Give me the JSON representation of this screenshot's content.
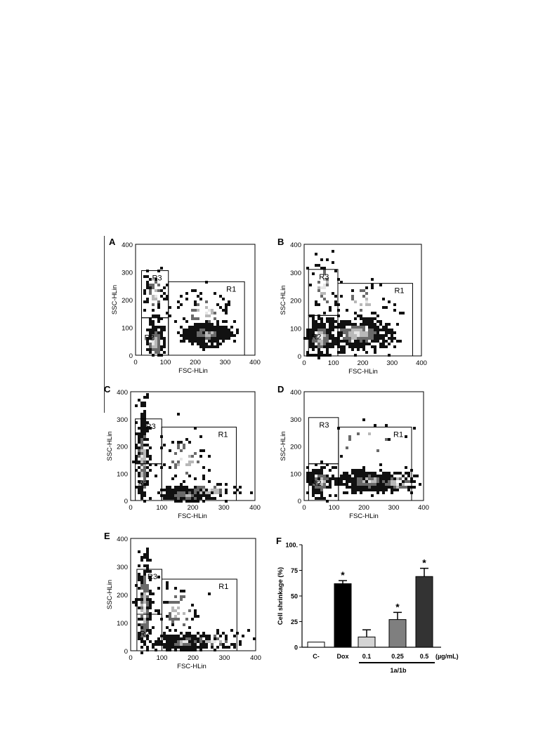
{
  "panels": [
    {
      "label": "A",
      "xlabel": "FSC-HLin",
      "ylabel": "SSC-HLin",
      "xticks": [
        "0",
        "100",
        "200",
        "300",
        "400"
      ],
      "yticks": [
        "0",
        "100",
        "200",
        "300",
        "400"
      ],
      "regions": [
        "R1",
        "R2",
        "R3"
      ]
    },
    {
      "label": "B",
      "xlabel": "FSC-HLin",
      "ylabel": "SSC-HLin",
      "xticks": [
        "0",
        "100",
        "200",
        "300",
        "400"
      ],
      "yticks": [
        "0",
        "100",
        "200",
        "300",
        "400"
      ],
      "regions": [
        "R1",
        "R2",
        "R3"
      ]
    },
    {
      "label": "C",
      "xlabel": "FSC-HLin",
      "ylabel": "SSC-HLin",
      "xticks": [
        "0",
        "100",
        "200",
        "300",
        "400"
      ],
      "yticks": [
        "0",
        "100",
        "200",
        "300",
        "400"
      ],
      "regions": [
        "R1",
        "R2",
        "R3"
      ]
    },
    {
      "label": "D",
      "xlabel": "FSC-HLin",
      "ylabel": "SSC-HLin",
      "xticks": [
        "0",
        "100",
        "200",
        "300",
        "400"
      ],
      "yticks": [
        "0",
        "100",
        "200",
        "300",
        "400"
      ],
      "regions": [
        "R1",
        "R2",
        "R3"
      ]
    },
    {
      "label": "E",
      "xlabel": "FSC-HLin",
      "ylabel": "SSC-HLin",
      "xticks": [
        "0",
        "100",
        "200",
        "300",
        "400"
      ],
      "yticks": [
        "0",
        "100",
        "200",
        "300",
        "400"
      ],
      "regions": [
        "R1",
        "R2",
        "R3"
      ]
    }
  ],
  "bar_panel": {
    "label": "F",
    "ylabel": "Cell shrinkage (%)",
    "yticks": [
      "0",
      "25",
      "50",
      "75",
      "100."
    ],
    "unit": "(µg/mL)",
    "group_label": "1a/1b"
  },
  "colors": {
    "axis": "#000000",
    "background": "#ffffff"
  },
  "chart_data": [
    {
      "type": "scatter",
      "panel": "A",
      "xlim": [
        0,
        400
      ],
      "ylim": [
        0,
        400
      ],
      "gates": [
        {
          "name": "R1",
          "x": [
            110,
            365
          ],
          "y": [
            0,
            265
          ]
        },
        {
          "name": "R2",
          "x": [
            20,
            110
          ],
          "y": [
            0,
            135
          ]
        },
        {
          "name": "R3",
          "x": [
            20,
            110
          ],
          "y": [
            135,
            305
          ]
        }
      ]
    },
    {
      "type": "scatter",
      "panel": "B",
      "xlim": [
        0,
        400
      ],
      "ylim": [
        0,
        400
      ],
      "gates": [
        {
          "name": "R1",
          "x": [
            115,
            370
          ],
          "y": [
            0,
            260
          ]
        },
        {
          "name": "R2",
          "x": [
            15,
            115
          ],
          "y": [
            0,
            145
          ]
        },
        {
          "name": "R3",
          "x": [
            15,
            115
          ],
          "y": [
            145,
            310
          ]
        }
      ]
    },
    {
      "type": "scatter",
      "panel": "C",
      "xlim": [
        0,
        400
      ],
      "ylim": [
        0,
        400
      ],
      "gates": [
        {
          "name": "R1",
          "x": [
            100,
            340
          ],
          "y": [
            0,
            270
          ]
        },
        {
          "name": "R2",
          "x": [
            15,
            100
          ],
          "y": [
            0,
            135
          ]
        },
        {
          "name": "R3",
          "x": [
            15,
            100
          ],
          "y": [
            135,
            300
          ]
        }
      ]
    },
    {
      "type": "scatter",
      "panel": "D",
      "xlim": [
        0,
        400
      ],
      "ylim": [
        0,
        400
      ],
      "gates": [
        {
          "name": "R1",
          "x": [
            115,
            360
          ],
          "y": [
            0,
            270
          ]
        },
        {
          "name": "R2",
          "x": [
            15,
            115
          ],
          "y": [
            0,
            135
          ]
        },
        {
          "name": "R3",
          "x": [
            15,
            115
          ],
          "y": [
            135,
            305
          ]
        }
      ]
    },
    {
      "type": "scatter",
      "panel": "E",
      "xlim": [
        0,
        400
      ],
      "ylim": [
        0,
        400
      ],
      "gates": [
        {
          "name": "R1",
          "x": [
            100,
            340
          ],
          "y": [
            0,
            255
          ]
        },
        {
          "name": "R2",
          "x": [
            20,
            100
          ],
          "y": [
            0,
            130
          ]
        },
        {
          "name": "R3",
          "x": [
            20,
            100
          ],
          "y": [
            130,
            290
          ]
        }
      ]
    },
    {
      "type": "bar",
      "panel": "F",
      "categories": [
        "C-",
        "Dox",
        "0.1",
        "0.25",
        "0.5"
      ],
      "values": [
        5,
        62,
        10,
        27,
        69
      ],
      "errors": [
        0,
        3,
        7,
        7,
        8
      ],
      "significant": [
        false,
        true,
        false,
        true,
        true
      ],
      "bar_colors": [
        "#ffffff",
        "#000000",
        "#d4d4d4",
        "#7f7f7f",
        "#333333"
      ],
      "ylim": [
        0,
        100
      ]
    }
  ]
}
